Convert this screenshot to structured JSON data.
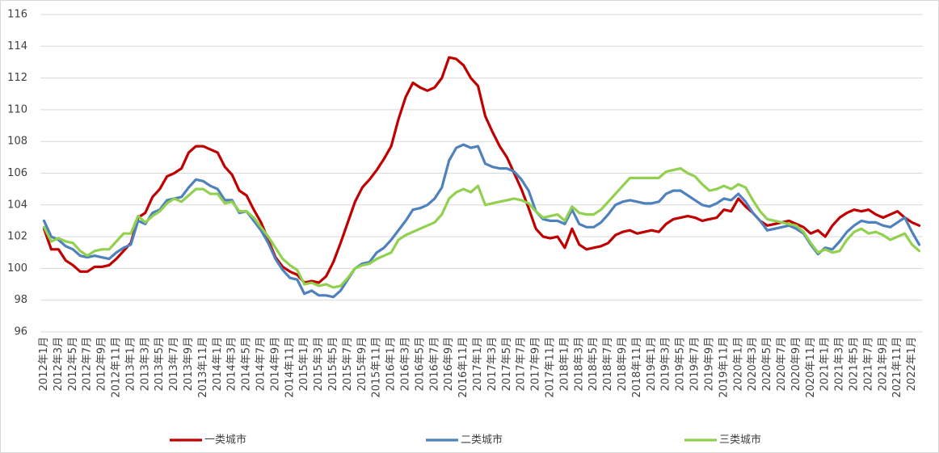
{
  "chart_data": {
    "type": "line",
    "categories": [
      "2012年1月",
      null,
      "2012年3月",
      null,
      "2012年5月",
      null,
      "2012年7月",
      null,
      "2012年9月",
      null,
      "2012年11月",
      null,
      "2013年1月",
      null,
      "2013年3月",
      null,
      "2013年5月",
      null,
      "2013年7月",
      null,
      "2013年9月",
      null,
      "2013年11月",
      null,
      "2014年1月",
      null,
      "2014年3月",
      null,
      "2014年5月",
      null,
      "2014年7月",
      null,
      "2014年9月",
      null,
      "2014年11月",
      null,
      "2015年1月",
      null,
      "2015年3月",
      null,
      "2015年5月",
      null,
      "2015年7月",
      null,
      "2015年9月",
      null,
      "2015年11月",
      null,
      "2016年1月",
      null,
      "2016年3月",
      null,
      "2016年5月",
      null,
      "2016年7月",
      null,
      "2016年9月",
      null,
      "2016年11月",
      null,
      "2017年1月",
      null,
      "2017年3月",
      null,
      "2017年5月",
      null,
      "2017年7月",
      null,
      "2017年9月",
      null,
      "2017年11月",
      null,
      "2018年1月",
      null,
      "2018年3月",
      null,
      "2018年5月",
      null,
      "2018年7月",
      null,
      "2018年9月",
      null,
      "2018年11月",
      null,
      "2019年1月",
      null,
      "2019年3月",
      null,
      "2019年5月",
      null,
      "2019年7月",
      null,
      "2019年9月",
      null,
      "2019年11月",
      null,
      "2020年1月",
      null,
      "2020年3月",
      null,
      "2020年5月",
      null,
      "2020年7月",
      null,
      "2020年9月",
      null,
      "2020年11月",
      null,
      "2021年1月",
      null,
      "2021年3月",
      null,
      "2021年5月",
      null,
      "2021年7月",
      null,
      "2021年9月",
      null,
      "2021年11月",
      null,
      "2022年1月",
      null
    ],
    "series": [
      {
        "name": "一类城市",
        "color": "#c00000",
        "values": [
          102.5,
          101.2,
          101.2,
          100.5,
          100.2,
          99.8,
          99.8,
          100.1,
          100.1,
          100.2,
          100.6,
          101.1,
          101.6,
          103.2,
          103.5,
          104.5,
          105.0,
          105.8,
          106.0,
          106.3,
          107.3,
          107.7,
          107.7,
          107.5,
          107.3,
          106.4,
          105.9,
          104.9,
          104.6,
          103.7,
          102.9,
          101.8,
          100.7,
          100.1,
          99.8,
          99.6,
          99.1,
          99.2,
          99.1,
          99.5,
          100.4,
          101.6,
          102.9,
          104.2,
          105.1,
          105.6,
          106.2,
          106.9,
          107.7,
          109.4,
          110.8,
          111.7,
          111.4,
          111.2,
          111.4,
          112.0,
          113.3,
          113.2,
          112.8,
          112.0,
          111.5,
          109.6,
          108.6,
          107.7,
          107.0,
          106.0,
          105.0,
          103.8,
          102.5,
          102.0,
          101.9,
          102.0,
          101.3,
          102.5,
          101.5,
          101.2,
          101.3,
          101.4,
          101.6,
          102.1,
          102.3,
          102.4,
          102.2,
          102.3,
          102.4,
          102.3,
          102.8,
          103.1,
          103.2,
          103.3,
          103.2,
          103.0,
          103.1,
          103.2,
          103.7,
          103.6,
          104.4,
          103.9,
          103.5,
          103.0,
          102.7,
          102.8,
          102.9,
          103.0,
          102.8,
          102.6,
          102.2,
          102.4,
          102.0,
          102.7,
          103.2,
          103.5,
          103.7,
          103.6,
          103.7,
          103.4,
          103.2,
          103.4,
          103.6,
          103.2,
          102.9,
          102.7
        ]
      },
      {
        "name": "二类城市",
        "color": "#4f81bd",
        "values": [
          103.0,
          102.0,
          101.8,
          101.4,
          101.2,
          100.8,
          100.7,
          100.8,
          100.7,
          100.6,
          101.0,
          101.3,
          101.5,
          103.0,
          102.8,
          103.5,
          103.7,
          104.3,
          104.4,
          104.5,
          105.1,
          105.6,
          105.5,
          105.2,
          105.0,
          104.3,
          104.3,
          103.5,
          103.6,
          103.0,
          102.4,
          101.6,
          100.6,
          99.9,
          99.4,
          99.3,
          98.4,
          98.6,
          98.3,
          98.3,
          98.2,
          98.6,
          99.3,
          100.0,
          100.3,
          100.4,
          101.0,
          101.3,
          101.8,
          102.4,
          103.0,
          103.7,
          103.8,
          104.0,
          104.4,
          105.1,
          106.8,
          107.6,
          107.8,
          107.6,
          107.7,
          106.6,
          106.4,
          106.3,
          106.3,
          106.1,
          105.6,
          104.9,
          103.6,
          103.1,
          103.0,
          103.0,
          102.8,
          103.7,
          102.8,
          102.6,
          102.6,
          102.9,
          103.4,
          104.0,
          104.2,
          104.3,
          104.2,
          104.1,
          104.1,
          104.2,
          104.7,
          104.9,
          104.9,
          104.6,
          104.3,
          104.0,
          103.9,
          104.1,
          104.4,
          104.3,
          104.7,
          104.2,
          103.5,
          103.0,
          102.4,
          102.5,
          102.6,
          102.7,
          102.5,
          102.2,
          101.5,
          100.9,
          101.3,
          101.2,
          101.7,
          102.3,
          102.7,
          103.0,
          102.9,
          102.9,
          102.7,
          102.6,
          102.9,
          103.2,
          102.3,
          101.5
        ]
      },
      {
        "name": "三类城市",
        "color": "#92d050",
        "values": [
          102.6,
          101.7,
          101.9,
          101.7,
          101.6,
          101.1,
          100.8,
          101.1,
          101.2,
          101.2,
          101.7,
          102.2,
          102.2,
          103.3,
          102.9,
          103.3,
          103.6,
          104.1,
          104.4,
          104.2,
          104.6,
          105.0,
          105.0,
          104.7,
          104.7,
          104.1,
          104.2,
          103.6,
          103.6,
          103.2,
          102.6,
          102.0,
          101.3,
          100.6,
          100.2,
          99.9,
          99.0,
          99.1,
          98.9,
          99.0,
          98.8,
          98.9,
          99.4,
          100.0,
          100.2,
          100.3,
          100.6,
          100.8,
          101.0,
          101.8,
          102.1,
          102.3,
          102.5,
          102.7,
          102.9,
          103.4,
          104.4,
          104.8,
          105.0,
          104.8,
          105.2,
          104.0,
          104.1,
          104.2,
          104.3,
          104.4,
          104.3,
          104.1,
          103.6,
          103.2,
          103.3,
          103.4,
          103.0,
          103.9,
          103.5,
          103.4,
          103.4,
          103.7,
          104.2,
          104.7,
          105.2,
          105.7,
          105.7,
          105.7,
          105.7,
          105.7,
          106.1,
          106.2,
          106.3,
          106.0,
          105.8,
          105.3,
          104.9,
          105.0,
          105.2,
          105.0,
          105.3,
          105.1,
          104.3,
          103.6,
          103.1,
          103.0,
          102.9,
          102.8,
          102.7,
          102.3,
          101.6,
          101.0,
          101.2,
          101.0,
          101.1,
          101.8,
          102.3,
          102.5,
          102.2,
          102.3,
          102.1,
          101.8,
          102.0,
          102.2,
          101.5,
          101.1
        ]
      }
    ],
    "ylim": [
      96,
      116
    ],
    "yticks": [
      96,
      98,
      100,
      102,
      104,
      106,
      108,
      110,
      112,
      114,
      116
    ],
    "grid": true,
    "legend": "bottom"
  }
}
